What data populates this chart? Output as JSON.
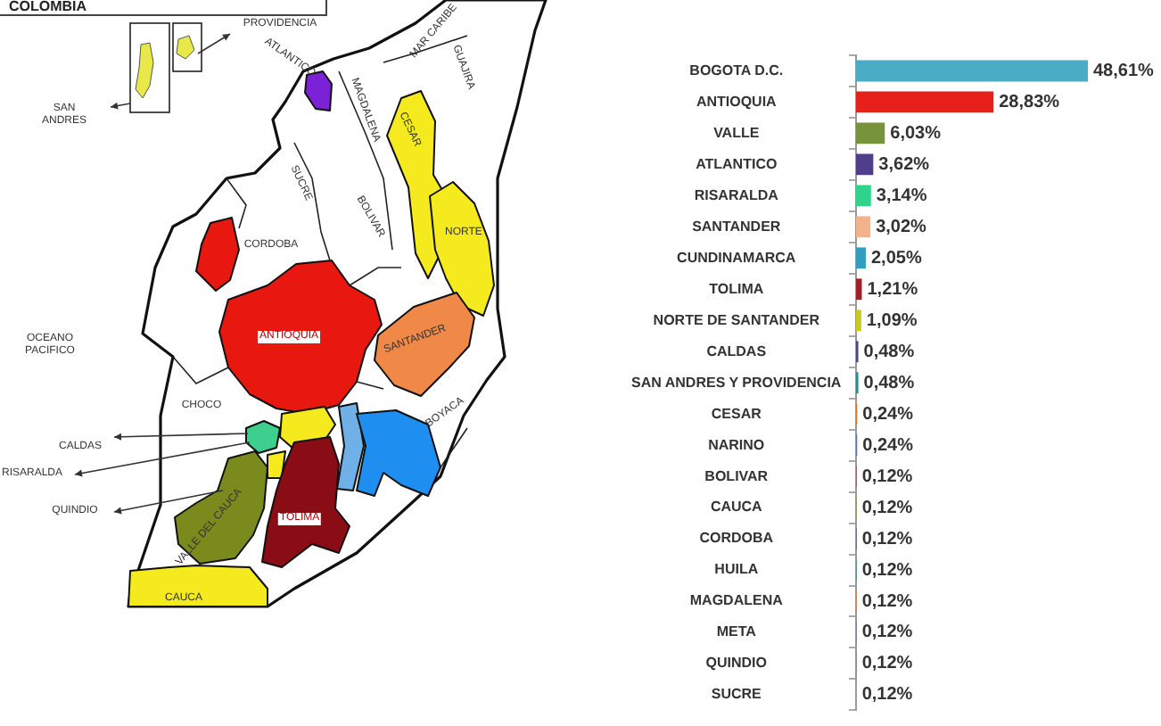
{
  "chart_data": [
    {
      "type": "other",
      "title": "COLOMBIA",
      "annotations": [
        "PROVIDENCIA",
        "SAN ANDRES",
        "MAR CARIBE",
        "ATLANTICO",
        "MAGDALENA",
        "GUAJIRA",
        "CESAR",
        "SUCRE",
        "BOLIVAR",
        "CORDOBA",
        "NORTE",
        "ANTIOQUIA",
        "SANTANDER",
        "OCEANO PACIFICO",
        "CHOCO",
        "BOYACA",
        "CALDAS",
        "RISARALDA",
        "QUINDIO",
        "VALLE DEL CAUCA",
        "TOLIMA",
        "CAUCA"
      ]
    },
    {
      "type": "bar",
      "orientation": "horizontal",
      "tick_labels": "y",
      "categories": [
        "BOGOTA D.C.",
        "ANTIOQUIA",
        "VALLE",
        "ATLANTICO",
        "RISARALDA",
        "SANTANDER",
        "CUNDINAMARCA",
        "TOLIMA",
        "NORTE DE SANTANDER",
        "CALDAS",
        "SAN ANDRES Y PROVIDENCIA",
        "CESAR",
        "NARINO",
        "BOLIVAR",
        "CAUCA",
        "CORDOBA",
        "HUILA",
        "MAGDALENA",
        "META",
        "QUINDIO",
        "SUCRE"
      ],
      "values": [
        48.61,
        28.83,
        6.03,
        3.62,
        3.14,
        3.02,
        2.05,
        1.21,
        1.09,
        0.48,
        0.48,
        0.24,
        0.24,
        0.12,
        0.12,
        0.12,
        0.12,
        0.12,
        0.12,
        0.12,
        0.12
      ],
      "value_labels": [
        "48,61%",
        "28,83%",
        "6,03%",
        "3,62%",
        "3,14%",
        "3,02%",
        "2,05%",
        "1,21%",
        "1,09%",
        "0,48%",
        "0,48%",
        "0,24%",
        "0,24%",
        "0,12%",
        "0,12%",
        "0,12%",
        "0,12%",
        "0,12%",
        "0,12%",
        "0,12%",
        "0,12%"
      ],
      "colors": [
        "#4bacc6",
        "#e8201c",
        "#77933c",
        "#4f3f8a",
        "#2fd48c",
        "#f2b28a",
        "#31a0c0",
        "#a0202a",
        "#c8c81e",
        "#4a4a80",
        "#2a8c8c",
        "#d0782a",
        "#5878a8",
        "#a04860",
        "#8ca040",
        "#5a5a88",
        "#3c8c8c",
        "#d08040",
        "#6878a0",
        "#a07890",
        "#a0a0a0"
      ]
    }
  ]
}
